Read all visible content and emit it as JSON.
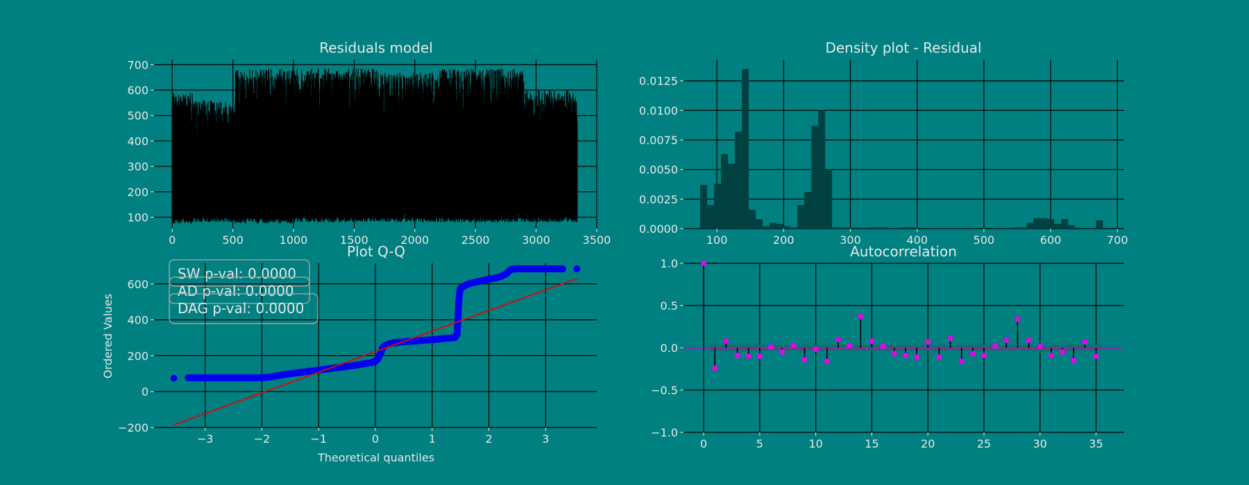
{
  "figure": {
    "background": "#008080",
    "grid_color": "#000000",
    "text_color": "#e8e8e8"
  },
  "chart_data": [
    {
      "id": "residuals",
      "type": "line",
      "title": "Residuals model",
      "xlabel": "",
      "ylabel": "",
      "xlim": [
        -150,
        3500
      ],
      "ylim": [
        55,
        720
      ],
      "xticks": [
        0,
        500,
        1000,
        1500,
        2000,
        2500,
        3000,
        3500
      ],
      "xtick_labels": [
        "0",
        "500",
        "1000",
        "1500",
        "2000",
        "2500",
        "3000",
        "3500"
      ],
      "yticks": [
        100,
        200,
        300,
        400,
        500,
        600,
        700
      ],
      "ytick_labels": [
        "100",
        "200",
        "300",
        "400",
        "500",
        "600",
        "700"
      ],
      "grid": true,
      "series": [
        {
          "name": "residuals",
          "color": "#000000",
          "n_points": 3340,
          "value_range": [
            75,
            685
          ],
          "segments": [
            {
              "x": [
                0,
                170
              ],
              "low": 75,
              "high": 590
            },
            {
              "x": [
                170,
                520
              ],
              "low": 80,
              "high": 560
            },
            {
              "x": [
                520,
                1000
              ],
              "low": 75,
              "high": 685
            },
            {
              "x": [
                1000,
                1700
              ],
              "low": 80,
              "high": 685
            },
            {
              "x": [
                1700,
                2200
              ],
              "low": 80,
              "high": 670
            },
            {
              "x": [
                2200,
                2900
              ],
              "low": 80,
              "high": 685
            },
            {
              "x": [
                2900,
                3340
              ],
              "low": 80,
              "high": 600
            }
          ]
        }
      ]
    },
    {
      "id": "density",
      "type": "bar",
      "title": "Density plot - Residual",
      "xlabel": "",
      "ylabel": "",
      "xlim": [
        50,
        710
      ],
      "ylim": [
        0,
        0.0143
      ],
      "xticks": [
        100,
        200,
        300,
        400,
        500,
        600,
        700
      ],
      "xtick_labels": [
        "100",
        "200",
        "300",
        "400",
        "500",
        "600",
        "700"
      ],
      "yticks": [
        0,
        0.0025,
        0.005,
        0.0075,
        0.01,
        0.0125
      ],
      "ytick_labels": [
        "0.0000",
        "0.0025",
        "0.0050",
        "0.0075",
        "0.0100",
        "0.0125"
      ],
      "grid": true,
      "bar_color": "#004040",
      "bin_start": 75,
      "bin_width": 10.4,
      "values": [
        0.0037,
        0.002,
        0.0038,
        0.0063,
        0.0055,
        0.0082,
        0.0135,
        0.0016,
        0.0008,
        0.0002,
        0.0005,
        0.0004,
        0.0002,
        0.0001,
        0.002,
        0.0031,
        0.0087,
        0.01,
        0.005,
        0.0001,
        0.0001,
        0,
        0.0001,
        0,
        0.0001,
        0.0001,
        0.0001,
        0,
        0,
        0.0001,
        0.0001,
        0,
        0,
        0,
        0,
        0,
        0,
        0,
        0,
        0,
        0,
        0,
        0,
        0,
        0,
        0.0001,
        0.0001,
        0.0005,
        0.0009,
        0.0009,
        0.0008,
        0.0004,
        0.0008,
        0.0003,
        0,
        0,
        0,
        0.0007
      ]
    },
    {
      "id": "qq",
      "type": "scatter",
      "title": "Plot Q-Q",
      "xlabel": "Theoretical quantiles",
      "ylabel": "Ordered Values",
      "xlim": [
        -3.9,
        3.9
      ],
      "ylim": [
        -200,
        715
      ],
      "xticks": [
        -3,
        -2,
        -1,
        0,
        1,
        2,
        3
      ],
      "xtick_labels": [
        "−3",
        "−2",
        "−1",
        "0",
        "1",
        "2",
        "3"
      ],
      "yticks": [
        -200,
        0,
        200,
        400,
        600
      ],
      "ytick_labels": [
        "−200",
        "0",
        "200",
        "400",
        "600"
      ],
      "grid": true,
      "point_color": "#0000ee",
      "fit_line": {
        "color": "#cc1010",
        "x": [
          -3.55,
          3.55
        ],
        "y": [
          -185,
          630
        ]
      },
      "points": {
        "x": [
          -3.55,
          -3.3,
          -3.18,
          -3.1,
          -3.0,
          -2.9,
          -2.8,
          -2.7,
          -2.6,
          -2.5,
          -2.4,
          -2.3,
          -2.2,
          -2.1,
          -2.0,
          -1.9,
          -1.8,
          -1.7,
          -1.6,
          -1.5,
          -1.4,
          -1.3,
          -1.2,
          -1.1,
          -1.0,
          -0.9,
          -0.8,
          -0.7,
          -0.6,
          -0.5,
          -0.4,
          -0.3,
          -0.2,
          -0.1,
          0.0,
          0.05,
          0.1,
          0.13,
          0.16,
          0.2,
          0.3,
          0.4,
          0.5,
          0.6,
          0.7,
          0.8,
          0.9,
          1.0,
          1.1,
          1.2,
          1.3,
          1.4,
          1.44,
          1.45,
          1.46,
          1.47,
          1.48,
          1.49,
          1.5,
          1.52,
          1.55,
          1.6,
          1.7,
          1.8,
          1.9,
          2.0,
          2.1,
          2.2,
          2.3,
          2.35,
          2.4,
          2.5,
          2.6,
          2.7,
          2.8,
          2.9,
          3.0,
          3.1,
          3.2,
          3.3,
          3.55
        ],
        "y": [
          75,
          77,
          77,
          77,
          77,
          77,
          77,
          77,
          77,
          77,
          77,
          77,
          77,
          77,
          78,
          80,
          84,
          90,
          95,
          100,
          104,
          108,
          112,
          116,
          120,
          124,
          128,
          132,
          136,
          140,
          144,
          150,
          155,
          160,
          168,
          185,
          220,
          245,
          255,
          262,
          270,
          275,
          278,
          280,
          282,
          284,
          287,
          290,
          292,
          295,
          298,
          300,
          320,
          380,
          440,
          500,
          540,
          565,
          575,
          580,
          585,
          595,
          605,
          612,
          620,
          626,
          632,
          640,
          655,
          670,
          682,
          684,
          684,
          684,
          684,
          684,
          684,
          684,
          684,
          684,
          684
        ]
      },
      "annotations": [
        {
          "label": "SW p-val: 0.0000"
        },
        {
          "label": "AD p-val: 0.0000"
        },
        {
          "label": "DAG p-val: 0.0000"
        }
      ]
    },
    {
      "id": "acf",
      "type": "stem",
      "title": "Autocorrelation",
      "xlabel": "",
      "ylabel": "",
      "xlim": [
        -1.8,
        37.5
      ],
      "ylim": [
        -1.0,
        1.0
      ],
      "xticks": [
        0,
        5,
        10,
        15,
        20,
        25,
        30,
        35
      ],
      "xtick_labels": [
        "0",
        "5",
        "10",
        "15",
        "20",
        "25",
        "30",
        "35"
      ],
      "yticks": [
        -1.0,
        -0.5,
        0.0,
        0.5,
        1.0
      ],
      "ytick_labels": [
        "−1.0",
        "−0.5",
        "0.0",
        "0.5",
        "1.0"
      ],
      "grid": true,
      "marker_color": "#ee00ee",
      "zero_line_color": "#cc00cc",
      "confidence_band": {
        "x": [
          0.5,
          35.5
        ],
        "value": 0.035,
        "color": "#1a6a6a"
      },
      "lags": [
        0,
        1,
        2,
        3,
        4,
        5,
        6,
        7,
        8,
        9,
        10,
        11,
        12,
        13,
        14,
        15,
        16,
        17,
        18,
        19,
        20,
        21,
        22,
        23,
        24,
        25,
        26,
        27,
        28,
        29,
        30,
        31,
        32,
        33,
        34,
        35
      ],
      "values": [
        1.0,
        -0.24,
        0.08,
        -0.09,
        -0.1,
        -0.1,
        0.01,
        -0.05,
        0.03,
        -0.14,
        -0.02,
        -0.16,
        0.1,
        0.03,
        0.37,
        0.08,
        0.02,
        -0.07,
        -0.09,
        -0.11,
        0.07,
        -0.11,
        0.11,
        -0.16,
        -0.07,
        -0.09,
        0.02,
        0.09,
        0.34,
        0.09,
        0.02,
        -0.09,
        -0.05,
        -0.15,
        0.07,
        -0.1
      ]
    }
  ]
}
